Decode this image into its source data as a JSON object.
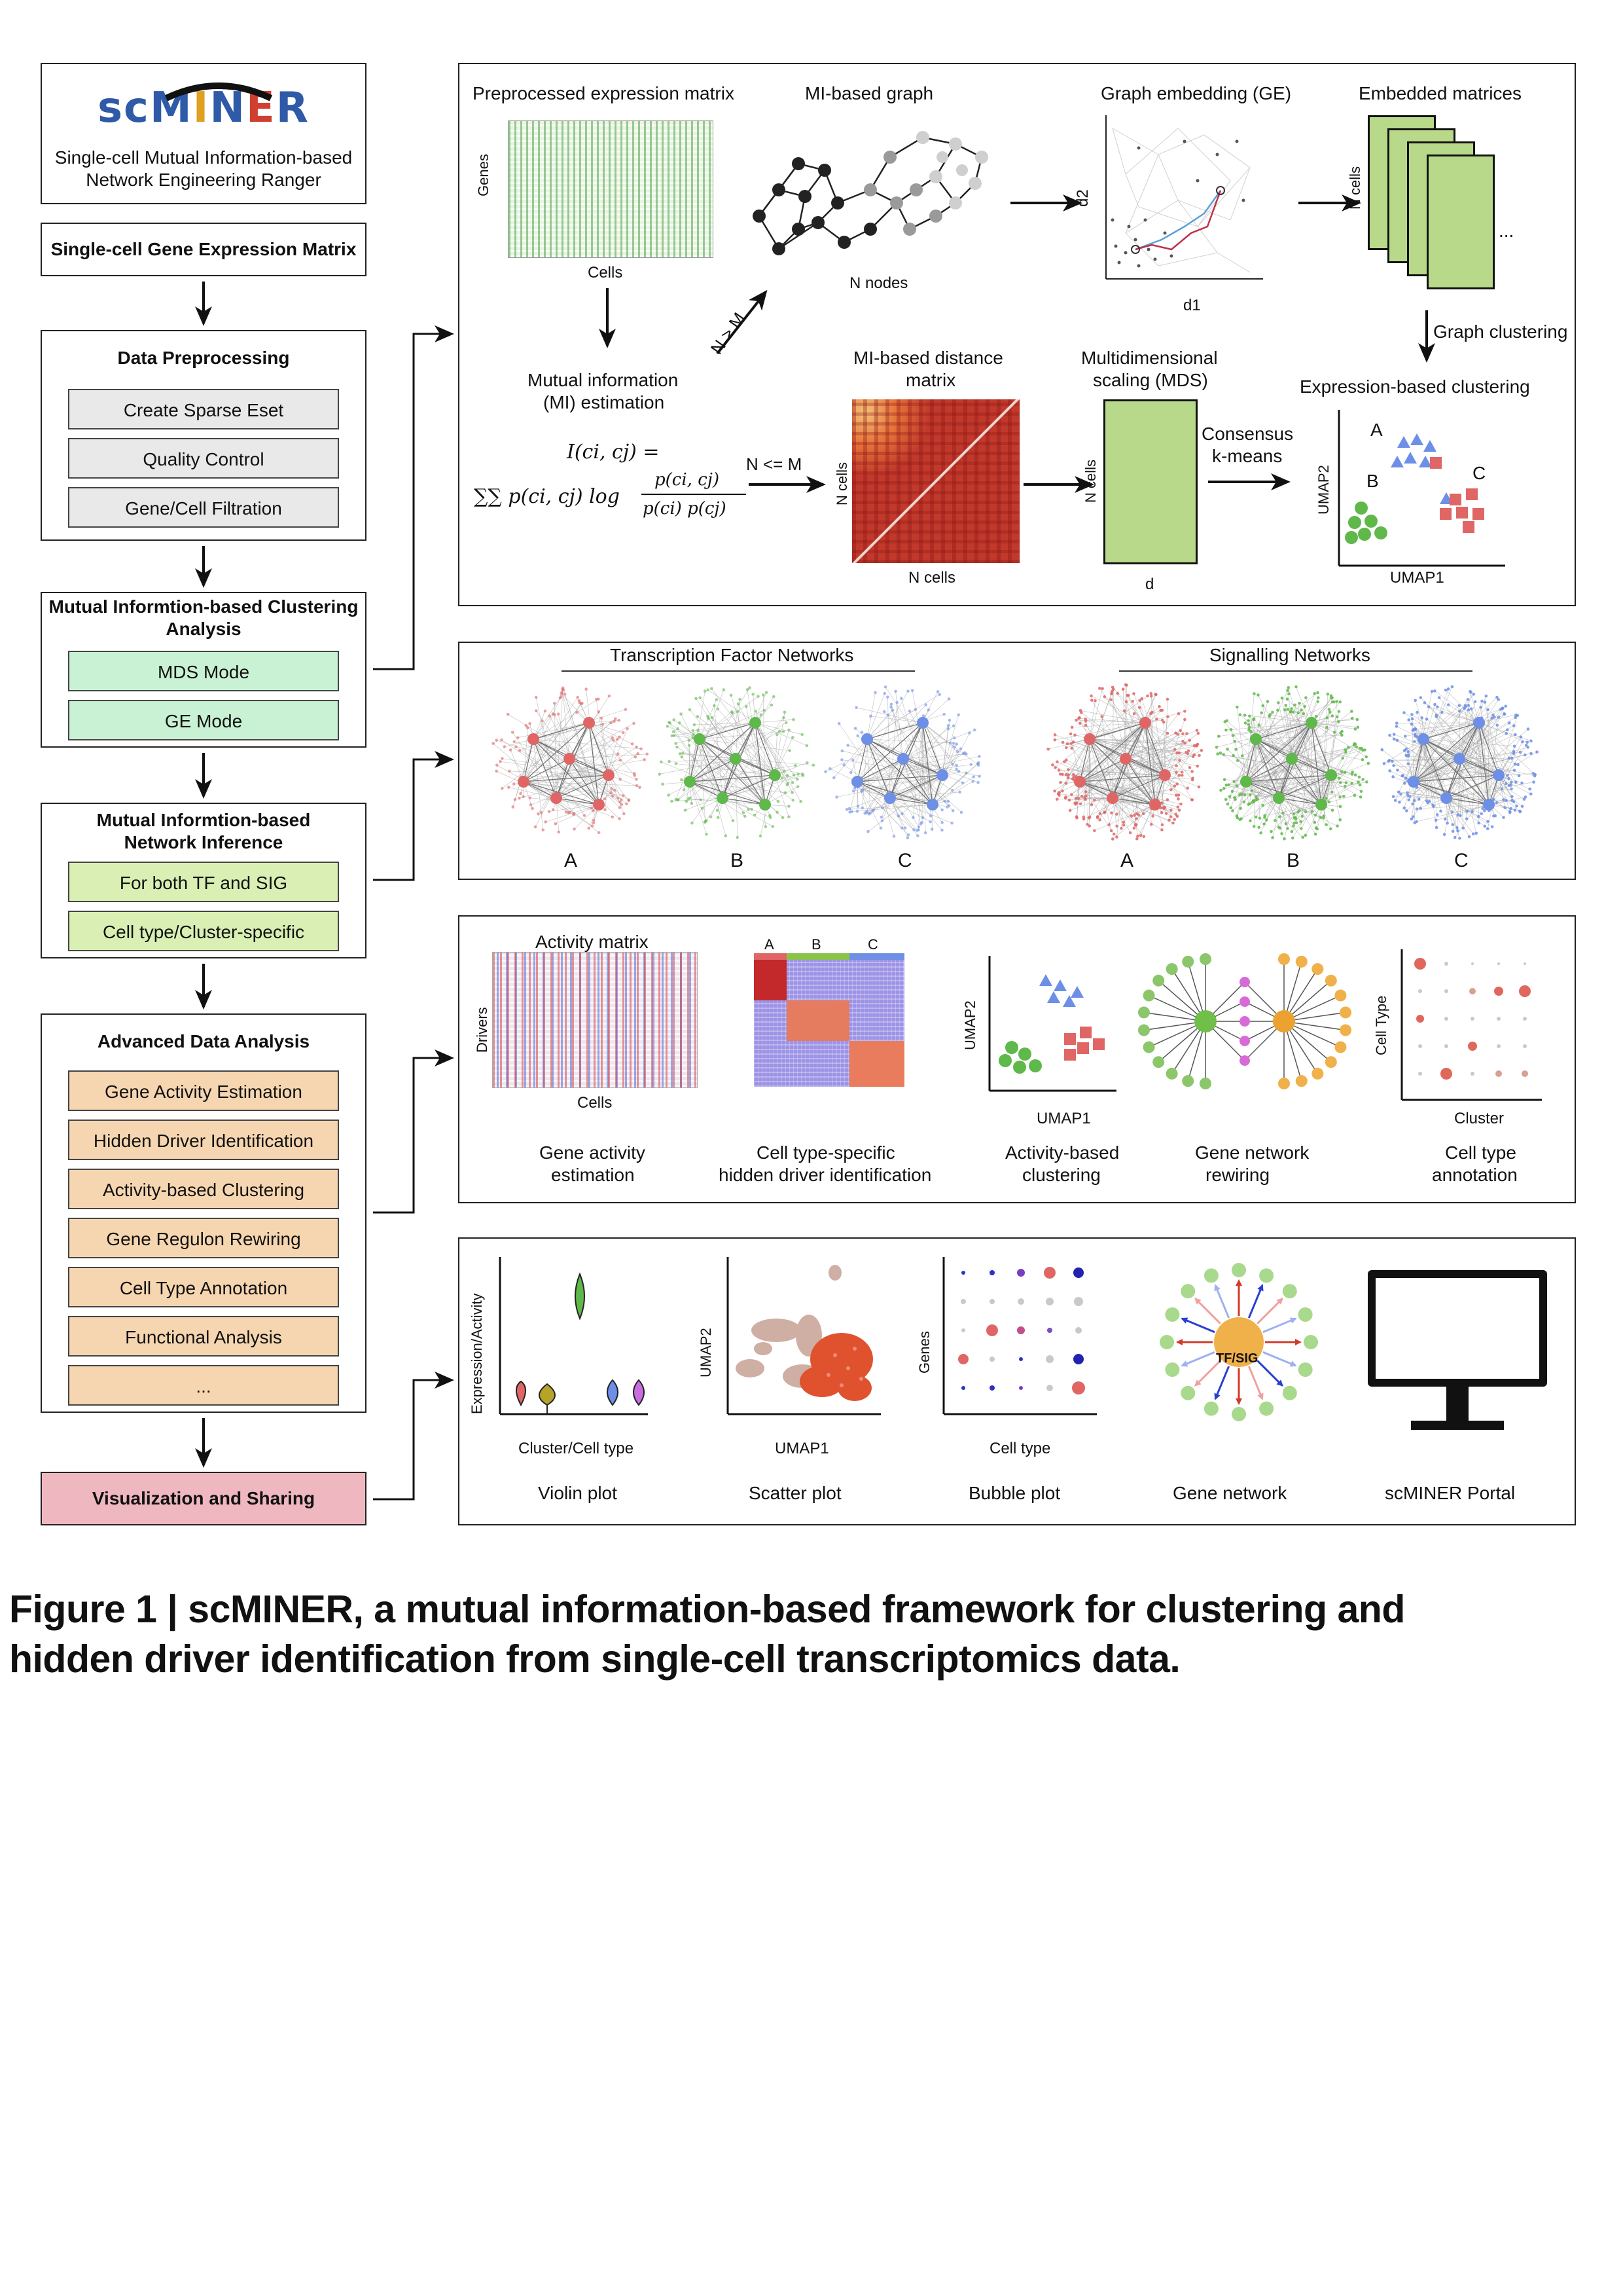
{
  "logo": {
    "text": "scMINER",
    "subtitle_line1": "Single-cell Mutual Information-based",
    "subtitle_line2": "Network Engineering Ranger"
  },
  "workflow": {
    "input": "Single-cell Gene Expression Matrix",
    "preprocessing": {
      "title": "Data Preprocessing",
      "steps": [
        "Create Sparse Eset",
        "Quality Control",
        "Gene/Cell Filtration"
      ]
    },
    "clustering": {
      "title_line1": "Mutual Informtion-based Clustering",
      "title_line2": "Analysis",
      "steps": [
        "MDS Mode",
        "GE Mode"
      ]
    },
    "network": {
      "title_line1": "Mutual Informtion-based",
      "title_line2": "Network Inference",
      "steps": [
        "For both TF and SIG",
        "Cell type/Cluster-specific"
      ]
    },
    "advanced": {
      "title": "Advanced Data Analysis",
      "steps": [
        "Gene Activity Estimation",
        "Hidden Driver Identification",
        "Activity-based Clustering",
        "Gene Regulon Rewiring",
        "Cell Type Annotation",
        "Functional Analysis",
        "..."
      ]
    },
    "visualization": "Visualization and Sharing"
  },
  "panel1": {
    "expr_matrix": "Preprocessed expression matrix",
    "genes": "Genes",
    "cells": "Cells",
    "mi_graph": "MI-based graph",
    "n_nodes": "N nodes",
    "ge": "Graph embedding (GE)",
    "d1": "d1",
    "d2": "d2",
    "embedded": "Embedded matrices",
    "n_cells": "N cells",
    "ellipsis": "...",
    "graph_clustering": "Graph clustering",
    "n_gt_m": "N > M",
    "mi_est_line1": "Mutual information",
    "mi_est_line2": "(MI) estimation",
    "formula_lhs": "I(c",
    "formula_lhs_rest": ", c",
    "formula_full_lhs": "I(ci, cj) =",
    "formula_sum": "∑∑ p(ci, cj) log",
    "formula_num": "p(ci, cj)",
    "formula_den": "p(ci) p(cj)",
    "n_le_m": "N <= M",
    "distance_line1": "MI-based distance",
    "distance_line2": "matrix",
    "n_cells_x": "N cells",
    "mds_line1": "Multidimensional",
    "mds_line2": "scaling (MDS)",
    "d": "d",
    "consensus_line1": "Consensus",
    "consensus_line2": "k-means",
    "expr_clustering": "Expression-based clustering",
    "umap1": "UMAP1",
    "umap2": "UMAP2",
    "cluster_labels": [
      "A",
      "B",
      "C"
    ]
  },
  "panel2": {
    "tf_title": "Transcription Factor Networks",
    "sig_title": "Signalling Networks",
    "network_labels": [
      "A",
      "B",
      "C",
      "A",
      "B",
      "C"
    ],
    "colors": [
      "#e06666",
      "#5fb84a",
      "#6d8fe6"
    ]
  },
  "panel3": {
    "activity_matrix": "Activity matrix",
    "drivers": "Drivers",
    "cells": "Cells",
    "heat_labels": [
      "A",
      "B",
      "C"
    ],
    "umap1": "UMAP1",
    "umap2": "UMAP2",
    "cell_type": "Cell Type",
    "cluster": "Cluster",
    "captions": [
      [
        "Gene activity",
        "estimation"
      ],
      [
        "Cell type-specific",
        "hidden driver identification"
      ],
      [
        "Activity-based",
        "clustering"
      ],
      [
        "Gene network",
        "rewiring"
      ],
      [
        "Cell type",
        "annotation"
      ]
    ]
  },
  "panel4": {
    "expr_activity": "Expression/Activity",
    "cluster_cell_type": "Cluster/Cell type",
    "umap1": "UMAP1",
    "umap2": "UMAP2",
    "genes": "Genes",
    "cell_type": "Cell type",
    "tfsig": "TF/SIG",
    "captions": [
      "Violin plot",
      "Scatter plot",
      "Bubble plot",
      "Gene network",
      "scMINER Portal"
    ]
  },
  "caption": {
    "line1": "Figure 1 | scMINER, a mutual information-based framework for clustering and",
    "line2": "hidden driver identification from single-cell transcriptomics data."
  }
}
